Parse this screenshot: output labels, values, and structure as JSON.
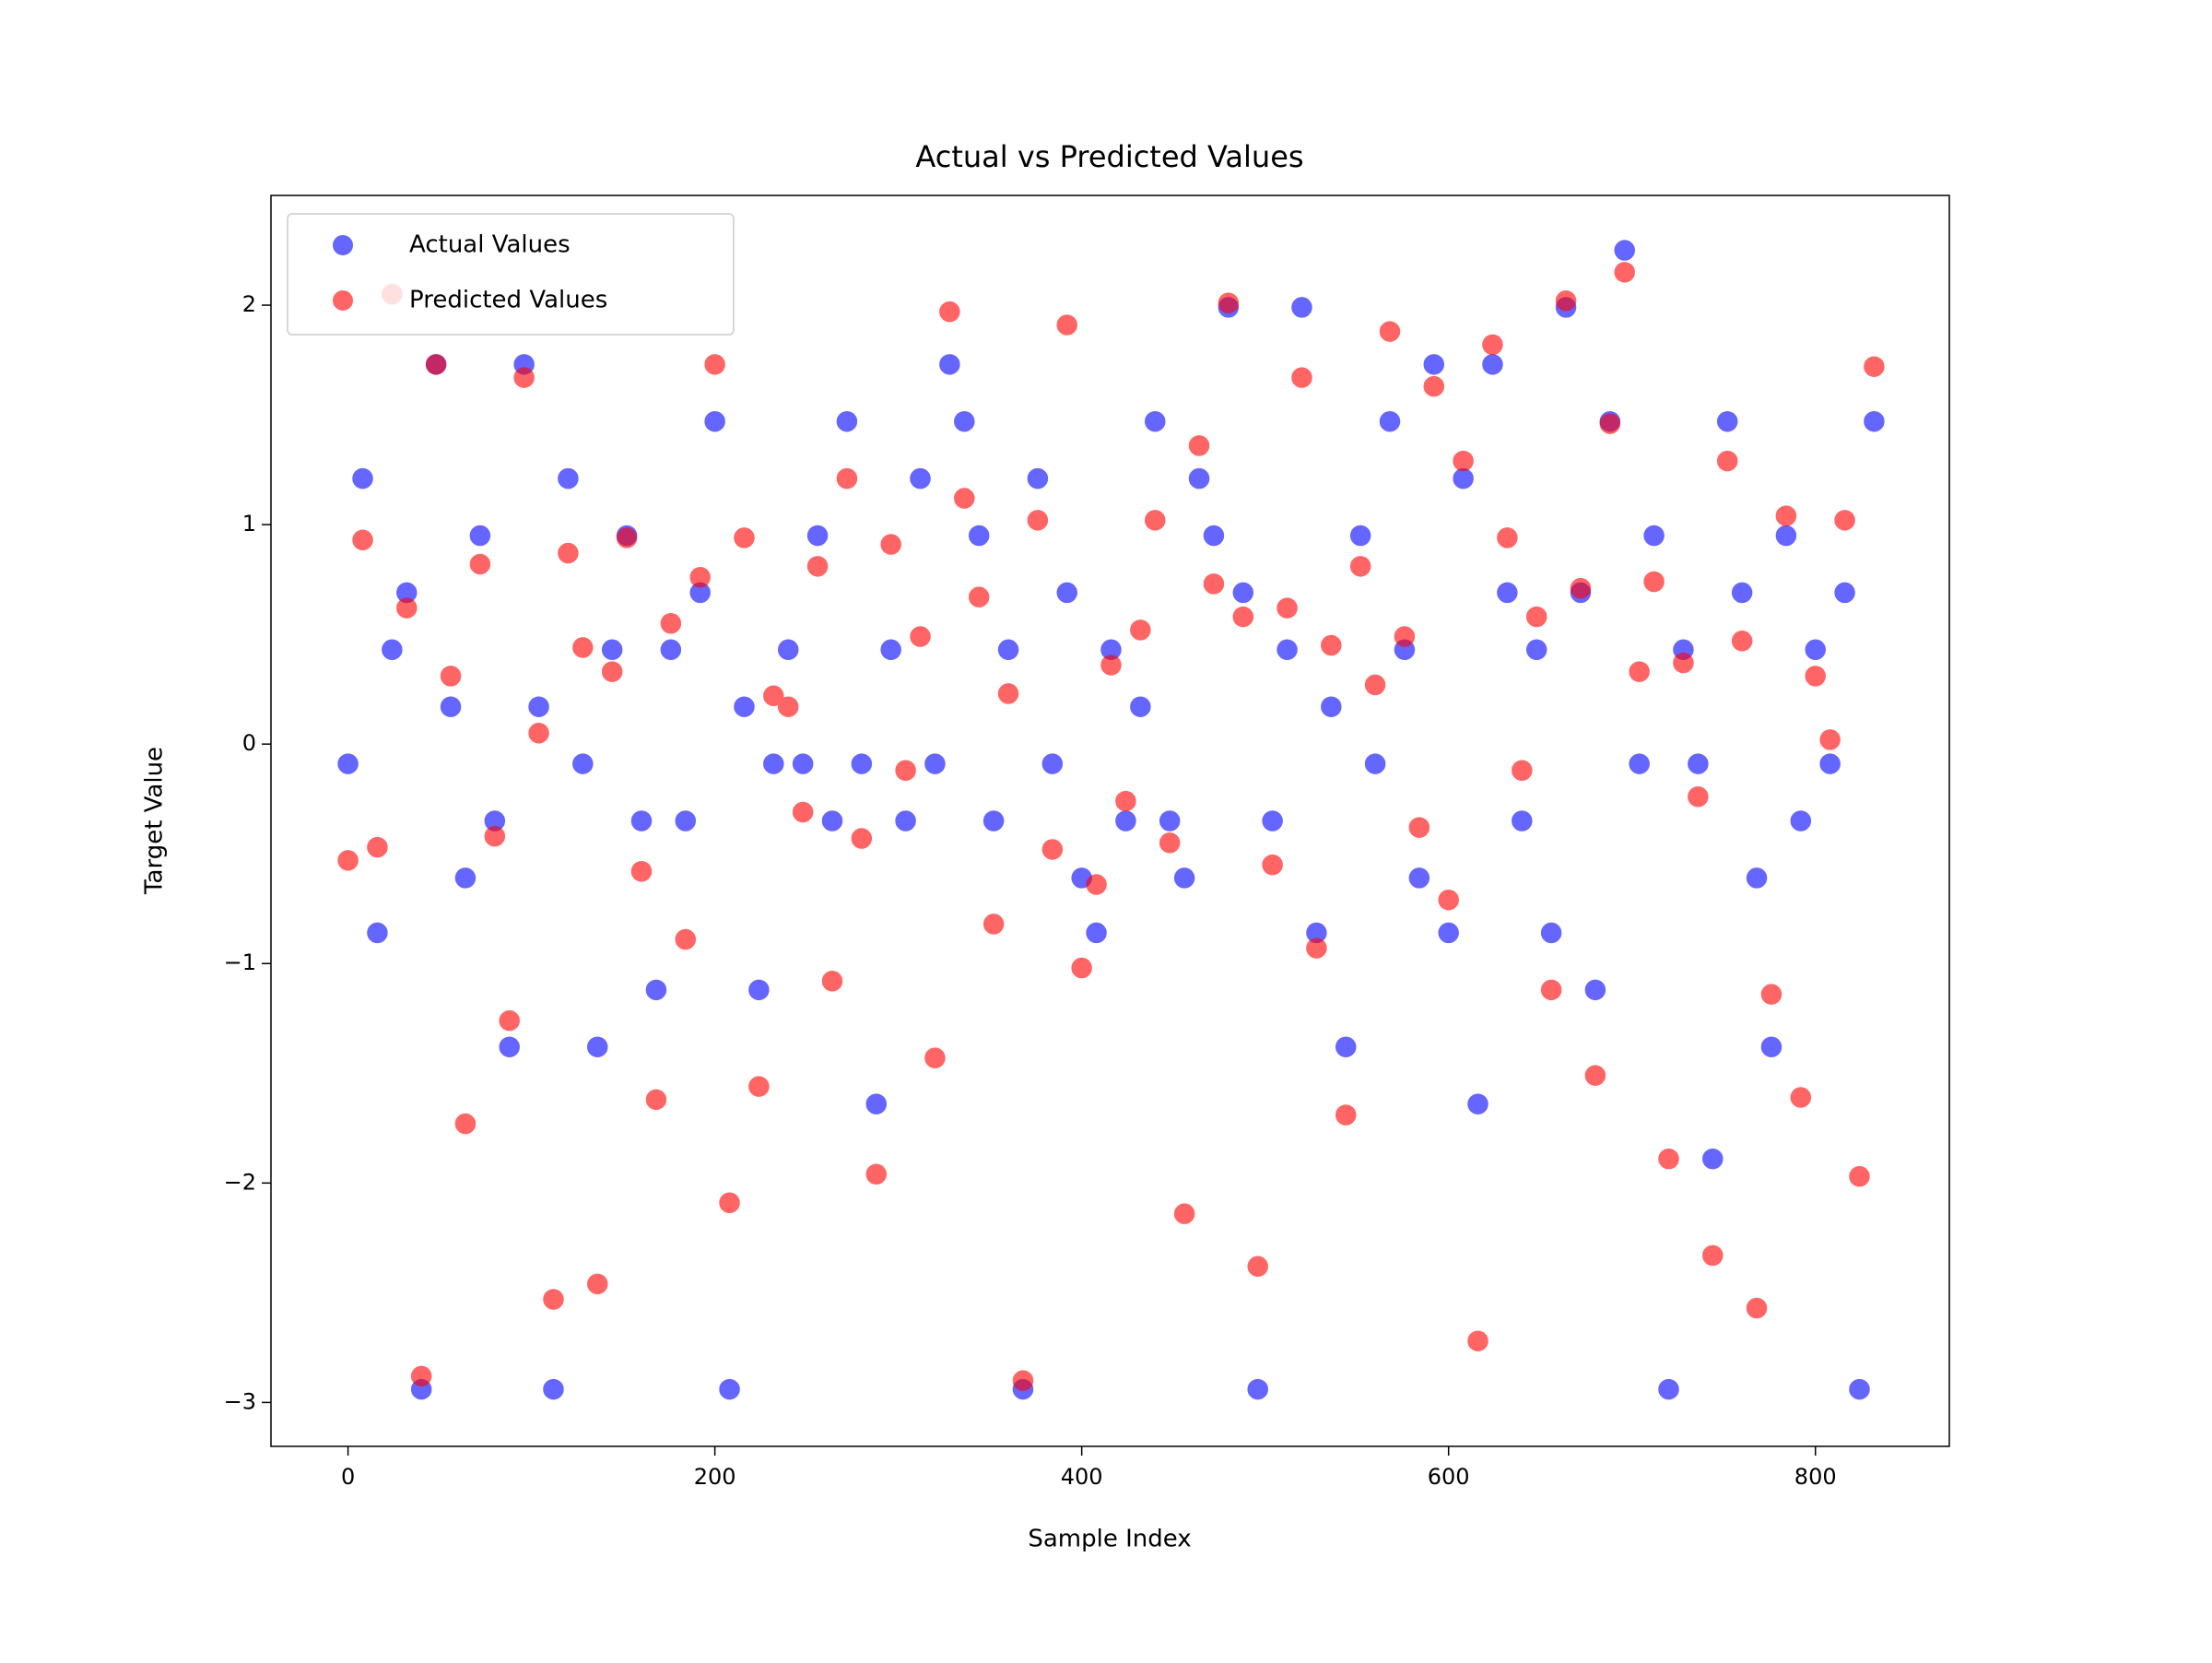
{
  "chart_data": {
    "type": "scatter",
    "title": "Actual vs Predicted Values",
    "x_label": "Sample Index",
    "y_label": "Target Value",
    "x": [
      0,
      8,
      16,
      24,
      32,
      40,
      48,
      56,
      64,
      72,
      80,
      88,
      96,
      104,
      112,
      120,
      128,
      136,
      144,
      152,
      160,
      168,
      176,
      184,
      192,
      200,
      208,
      216,
      224,
      232,
      240,
      248,
      256,
      264,
      272,
      280,
      288,
      296,
      304,
      312,
      320,
      328,
      336,
      344,
      352,
      360,
      368,
      376,
      384,
      392,
      400,
      408,
      416,
      424,
      432,
      440,
      448,
      456,
      464,
      472,
      480,
      488,
      496,
      504,
      512,
      520,
      528,
      536,
      544,
      552,
      560,
      568,
      576,
      584,
      592,
      600,
      608,
      616,
      624,
      632,
      640,
      648,
      656,
      664,
      672,
      680,
      688,
      696,
      704,
      712,
      720,
      728,
      736,
      744,
      752,
      760,
      768,
      776,
      784,
      792,
      800,
      808,
      816,
      824,
      832
    ],
    "series": [
      {
        "name": "Actual Values",
        "color": "#0000ff",
        "values": [
          -0.09,
          1.21,
          -0.86,
          0.43,
          0.69,
          -2.94,
          1.73,
          0.17,
          -0.61,
          0.95,
          -0.35,
          -1.38,
          1.73,
          0.17,
          -2.94,
          1.21,
          -0.09,
          -1.38,
          0.43,
          0.95,
          -0.35,
          -1.12,
          0.43,
          -0.35,
          0.69,
          1.47,
          -2.94,
          0.17,
          -1.12,
          -0.09,
          0.43,
          -0.09,
          0.95,
          -0.35,
          1.47,
          -0.09,
          -1.64,
          0.43,
          -0.35,
          1.21,
          -0.09,
          1.73,
          1.47,
          0.95,
          -0.35,
          0.43,
          -2.94,
          1.21,
          -0.09,
          0.69,
          -0.61,
          -0.86,
          0.43,
          -0.35,
          0.17,
          1.47,
          -0.35,
          -0.61,
          1.21,
          0.95,
          1.99,
          0.69,
          -2.94,
          -0.35,
          0.43,
          1.99,
          -0.86,
          0.17,
          -1.38,
          0.95,
          -0.09,
          1.47,
          0.43,
          -0.61,
          1.73,
          -0.86,
          1.21,
          -1.64,
          1.73,
          0.69,
          -0.35,
          0.43,
          -0.86,
          1.99,
          0.69,
          -1.12,
          1.47,
          2.25,
          -0.09,
          0.95,
          -2.94,
          0.43,
          -0.09,
          -1.89,
          1.47,
          0.69,
          -0.61,
          -1.38,
          0.95,
          -0.35,
          0.43,
          -0.09,
          0.69,
          -2.94,
          1.47
        ]
      },
      {
        "name": "Predicted Values",
        "color": "#ff0000",
        "values": [
          -0.53,
          0.93,
          -0.47,
          2.05,
          0.62,
          -2.88,
          1.73,
          0.31,
          -1.73,
          0.82,
          -0.42,
          -1.26,
          1.67,
          0.05,
          -2.53,
          0.87,
          0.44,
          -2.46,
          0.33,
          0.94,
          -0.58,
          -1.62,
          0.55,
          -0.89,
          0.76,
          1.73,
          -2.09,
          0.94,
          -1.56,
          0.22,
          0.17,
          -0.31,
          0.81,
          -1.08,
          1.21,
          -0.43,
          -1.96,
          0.91,
          -0.12,
          0.49,
          -1.43,
          1.97,
          1.12,
          0.67,
          -0.82,
          0.23,
          -2.9,
          1.02,
          -0.48,
          1.91,
          -1.02,
          -0.64,
          0.36,
          -0.26,
          0.52,
          1.02,
          -0.45,
          -2.14,
          1.36,
          0.73,
          2.01,
          0.58,
          -2.38,
          -0.55,
          0.62,
          1.67,
          -0.93,
          0.45,
          -1.69,
          0.81,
          0.27,
          1.88,
          0.49,
          -0.38,
          1.63,
          -0.71,
          1.29,
          -2.72,
          1.82,
          0.94,
          -0.12,
          0.58,
          -1.12,
          2.02,
          0.71,
          -1.51,
          1.46,
          2.15,
          0.33,
          0.74,
          -1.89,
          0.37,
          -0.24,
          -2.33,
          1.29,
          0.47,
          -2.57,
          -1.14,
          1.04,
          -1.61,
          0.31,
          0.02,
          1.02,
          -1.97,
          1.72
        ]
      }
    ],
    "xlim": [
      -42,
      873
    ],
    "ylim": [
      -3.2,
      2.5
    ],
    "xticks": [
      0,
      200,
      400,
      600,
      800
    ],
    "yticks": [
      {
        "value": -3,
        "label": "−3"
      },
      {
        "value": -2,
        "label": "−2"
      },
      {
        "value": -1,
        "label": "−1"
      },
      0,
      1,
      2
    ],
    "legend": "upper left",
    "alpha": 0.6
  }
}
